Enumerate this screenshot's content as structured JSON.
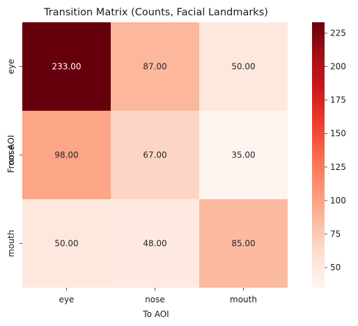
{
  "chart_data": {
    "type": "heatmap",
    "title": "Transition Matrix (Counts, Facial Landmarks)",
    "xlabel": "To AOI",
    "ylabel": "From AOI",
    "x_categories": [
      "eye",
      "nose",
      "mouth"
    ],
    "y_categories": [
      "eye",
      "nose",
      "mouth"
    ],
    "values": [
      [
        233,
        87,
        50
      ],
      [
        98,
        67,
        35
      ],
      [
        50,
        48,
        85
      ]
    ],
    "value_labels": [
      [
        "233.00",
        "87.00",
        "50.00"
      ],
      [
        "98.00",
        "67.00",
        "35.00"
      ],
      [
        "50.00",
        "48.00",
        "85.00"
      ]
    ],
    "colormap": "Reds",
    "color_range": [
      35,
      233
    ],
    "colorbar_ticks": [
      50,
      75,
      100,
      125,
      150,
      175,
      200,
      225
    ],
    "colors": {
      "low": "#fff5f0",
      "high": "#67000d",
      "text_dark": "#262626",
      "text_light": "#ffffff"
    }
  }
}
